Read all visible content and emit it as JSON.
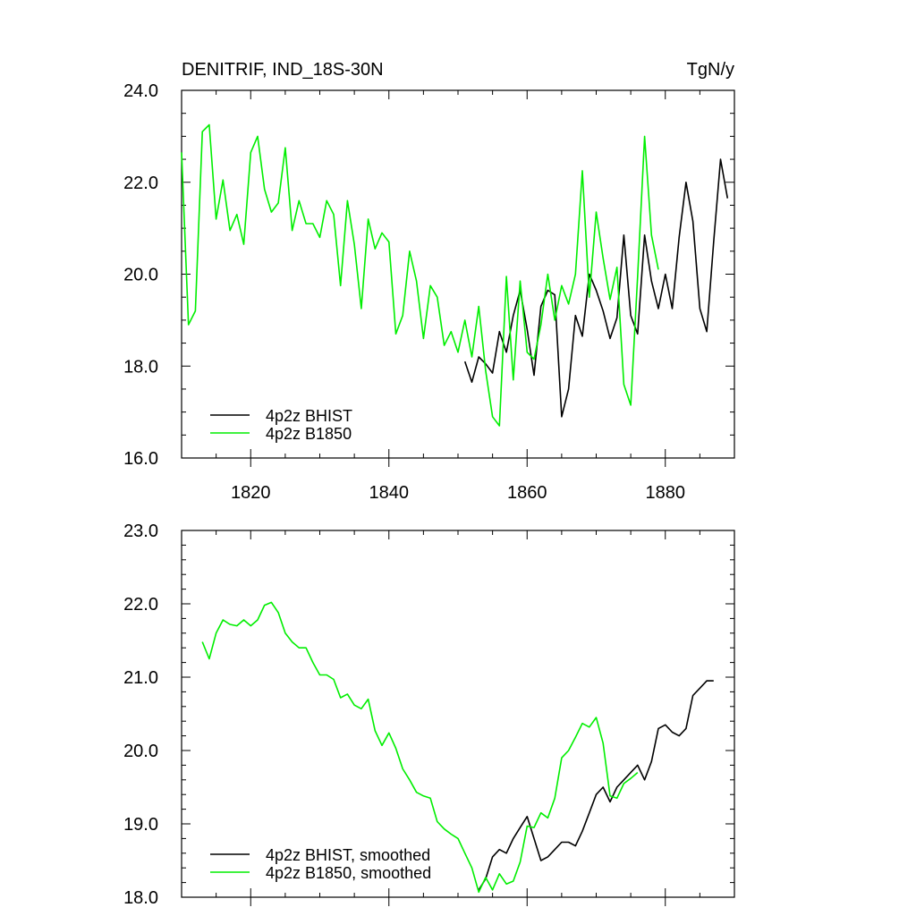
{
  "chart_data": [
    {
      "type": "line",
      "title": "DENITRIF, IND_18S-30N",
      "units": "TgN/y",
      "ylim": [
        16,
        24
      ],
      "xlim": [
        1810,
        1890
      ],
      "yticks": [
        "16.0",
        "18.0",
        "20.0",
        "22.0",
        "24.0"
      ],
      "xticks": [
        "1820",
        "1840",
        "1860",
        "1880"
      ],
      "legend_position": "bottom-left",
      "series": [
        {
          "name": "4p2z BHIST",
          "color": "#000000",
          "x": [
            1851,
            1852,
            1853,
            1854,
            1855,
            1856,
            1857,
            1858,
            1859,
            1860,
            1861,
            1862,
            1863,
            1864,
            1865,
            1866,
            1867,
            1868,
            1869,
            1870,
            1871,
            1872,
            1873,
            1874,
            1875,
            1876,
            1877,
            1878,
            1879,
            1880,
            1881,
            1882,
            1883,
            1884,
            1885,
            1886,
            1887,
            1888,
            1889
          ],
          "y": [
            18.1,
            17.65,
            18.2,
            18.05,
            17.85,
            18.75,
            18.3,
            19.1,
            19.65,
            18.8,
            17.8,
            19.3,
            19.65,
            19.55,
            16.9,
            17.5,
            19.1,
            18.65,
            20.0,
            19.65,
            19.2,
            18.6,
            19.05,
            20.85,
            19.1,
            18.7,
            20.85,
            19.85,
            19.25,
            20.0,
            19.25,
            20.8,
            22.0,
            21.15,
            19.25,
            18.75,
            20.7,
            22.5,
            21.65
          ]
        },
        {
          "name": "4p2z B1850",
          "color": "#00ee00",
          "x": [
            1810,
            1811,
            1812,
            1813,
            1814,
            1815,
            1816,
            1817,
            1818,
            1819,
            1820,
            1821,
            1822,
            1823,
            1824,
            1825,
            1826,
            1827,
            1828,
            1829,
            1830,
            1831,
            1832,
            1833,
            1834,
            1835,
            1836,
            1837,
            1838,
            1839,
            1840,
            1841,
            1842,
            1843,
            1844,
            1845,
            1846,
            1847,
            1848,
            1849,
            1850,
            1851,
            1852,
            1853,
            1854,
            1855,
            1856,
            1857,
            1858,
            1859,
            1860,
            1861,
            1862,
            1863,
            1864,
            1865,
            1866,
            1867,
            1868,
            1869,
            1870,
            1871,
            1872,
            1873,
            1874,
            1875,
            1876,
            1877,
            1878,
            1879
          ],
          "y": [
            22.65,
            18.9,
            19.2,
            23.1,
            23.25,
            21.2,
            22.05,
            20.95,
            21.3,
            20.65,
            22.65,
            23.0,
            21.85,
            21.35,
            21.55,
            22.75,
            20.95,
            21.6,
            21.1,
            21.1,
            20.8,
            21.6,
            21.3,
            19.75,
            21.6,
            20.65,
            19.25,
            21.2,
            20.55,
            20.9,
            20.7,
            18.7,
            19.1,
            20.5,
            19.85,
            18.6,
            19.75,
            19.5,
            18.45,
            18.75,
            18.3,
            19.0,
            18.2,
            19.3,
            17.9,
            16.9,
            16.7,
            19.95,
            17.7,
            19.85,
            18.3,
            18.15,
            18.9,
            20.0,
            19.0,
            19.75,
            19.35,
            20.0,
            22.25,
            19.5,
            21.35,
            20.35,
            19.45,
            20.15,
            17.6,
            17.15,
            19.95,
            23.0,
            20.85,
            20.1
          ]
        }
      ]
    },
    {
      "type": "line",
      "title": "",
      "units": "",
      "ylim": [
        18,
        23
      ],
      "xlim": [
        1810,
        1890
      ],
      "yticks": [
        "18.0",
        "19.0",
        "20.0",
        "21.0",
        "22.0",
        "23.0"
      ],
      "xticks": [],
      "legend_position": "bottom-left",
      "series": [
        {
          "name": "4p2z BHIST, smoothed",
          "color": "#000000",
          "x": [
            1853,
            1854,
            1855,
            1856,
            1857,
            1858,
            1859,
            1860,
            1861,
            1862,
            1863,
            1864,
            1865,
            1866,
            1867,
            1868,
            1869,
            1870,
            1871,
            1872,
            1873,
            1874,
            1875,
            1876,
            1877,
            1878,
            1879,
            1880,
            1881,
            1882,
            1883,
            1884,
            1885,
            1886,
            1887
          ],
          "y": [
            18.1,
            18.25,
            18.55,
            18.65,
            18.6,
            18.8,
            18.95,
            19.1,
            18.8,
            18.5,
            18.55,
            18.65,
            18.75,
            18.75,
            18.7,
            18.9,
            19.15,
            19.4,
            19.5,
            19.3,
            19.5,
            19.6,
            19.7,
            19.8,
            19.6,
            19.85,
            20.3,
            20.35,
            20.25,
            20.2,
            20.3,
            20.75,
            20.85,
            20.95,
            20.95
          ]
        },
        {
          "name": "4p2z B1850, smoothed",
          "color": "#00ee00",
          "x": [
            1813,
            1814,
            1815,
            1816,
            1817,
            1818,
            1819,
            1820,
            1821,
            1822,
            1823,
            1824,
            1825,
            1826,
            1827,
            1828,
            1829,
            1830,
            1831,
            1832,
            1833,
            1834,
            1835,
            1836,
            1837,
            1838,
            1839,
            1840,
            1841,
            1842,
            1843,
            1844,
            1845,
            1846,
            1847,
            1848,
            1849,
            1850,
            1851,
            1852,
            1853,
            1854,
            1855,
            1856,
            1857,
            1858,
            1859,
            1860,
            1861,
            1862,
            1863,
            1864,
            1865,
            1866,
            1867,
            1868,
            1869,
            1870,
            1871,
            1872,
            1873,
            1874,
            1875,
            1876
          ],
          "y": [
            21.48,
            21.25,
            21.6,
            21.78,
            21.72,
            21.7,
            21.78,
            21.7,
            21.78,
            21.98,
            22.02,
            21.88,
            21.6,
            21.48,
            21.4,
            21.4,
            21.2,
            21.03,
            21.03,
            20.97,
            20.72,
            20.77,
            20.62,
            20.57,
            20.7,
            20.27,
            20.07,
            20.24,
            20.03,
            19.75,
            19.6,
            19.43,
            19.38,
            19.35,
            19.03,
            18.93,
            18.86,
            18.8,
            18.6,
            18.4,
            18.07,
            18.27,
            18.1,
            18.32,
            18.18,
            18.22,
            18.48,
            18.97,
            18.95,
            19.15,
            19.08,
            19.35,
            19.9,
            20.0,
            20.18,
            20.37,
            20.32,
            20.45,
            20.1,
            19.38,
            19.35,
            19.55,
            19.62,
            19.7
          ]
        }
      ]
    }
  ]
}
